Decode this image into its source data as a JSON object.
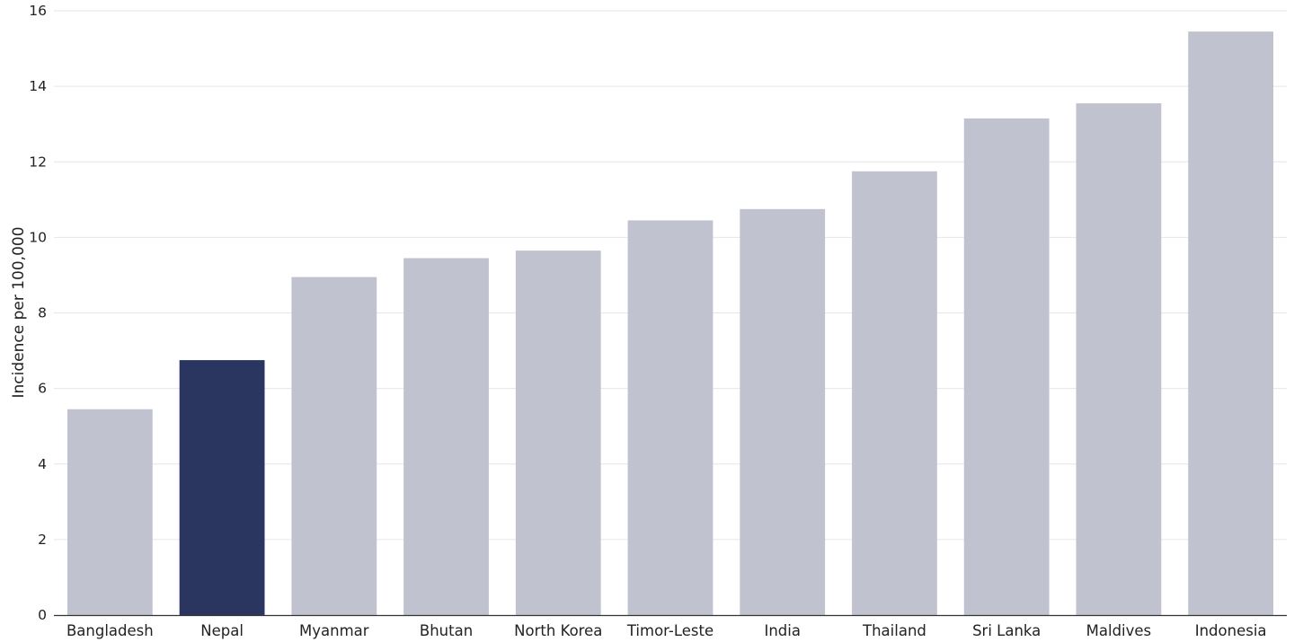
{
  "chart_data": {
    "type": "bar",
    "title": "",
    "xlabel": "",
    "ylabel": "Incidence per 100,000",
    "ylim": [
      0,
      16
    ],
    "yticks": [
      0,
      2,
      4,
      6,
      8,
      10,
      12,
      14,
      16
    ],
    "grid": true,
    "categories": [
      "Bangladesh",
      "Nepal",
      "Myanmar",
      "Bhutan",
      "North Korea",
      "Timor-Leste",
      "India",
      "Thailand",
      "Sri Lanka",
      "Maldives",
      "Indonesia"
    ],
    "values": [
      5.45,
      6.75,
      8.95,
      9.45,
      9.65,
      10.45,
      10.75,
      11.75,
      13.15,
      13.55,
      15.45
    ],
    "highlight": "Nepal",
    "colors": {
      "bar": "#c0c3cf",
      "highlight": "#2b3660"
    }
  }
}
